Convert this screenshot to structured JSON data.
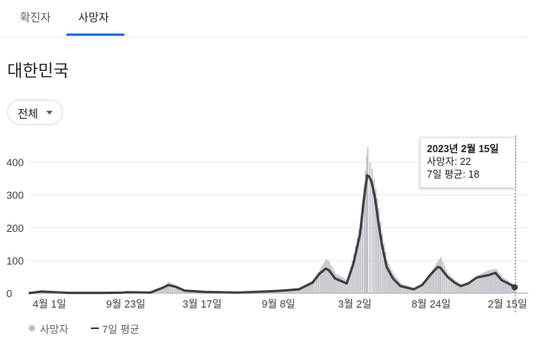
{
  "tabs": [
    {
      "label": "확진자",
      "selected": false
    },
    {
      "label": "사망자",
      "selected": true
    }
  ],
  "region_title": "대한민국",
  "range_dropdown": {
    "selected": "전체",
    "icon": "caret-down-icon"
  },
  "tooltip": {
    "date": "2023년 2월 15일",
    "deaths_label": "사망자: 22",
    "avg_label": "7일 평균: 18"
  },
  "legend": {
    "deaths": "사망자",
    "avg": "7일 평균"
  },
  "colors": {
    "accent": "#1a73e8",
    "bars": "#bdc1c6",
    "avg_line": "#3c4043",
    "grid": "#e8eaed"
  },
  "chart_data": {
    "type": "bar",
    "title": "",
    "xlabel": "",
    "ylabel": "",
    "ylim": [
      0,
      450
    ],
    "yticks": [
      0,
      100,
      200,
      300,
      400
    ],
    "grid": true,
    "legend_position": "bottom-left",
    "x_tick_labels": [
      "4월 1일",
      "9월 23일",
      "3월 17일",
      "9월 8일",
      "3월 2일",
      "8월 24일",
      "2월 15일"
    ],
    "x_range": [
      "2020-02-15",
      "2023-02-15"
    ],
    "series": [
      {
        "name": "사망자",
        "kind": "bars",
        "points": [
          [
            "2020-02-15",
            0
          ],
          [
            "2020-03-15",
            6
          ],
          [
            "2020-04-01",
            5
          ],
          [
            "2020-05-15",
            1
          ],
          [
            "2020-08-01",
            1
          ],
          [
            "2020-09-15",
            3
          ],
          [
            "2020-09-23",
            4
          ],
          [
            "2020-11-15",
            2
          ],
          [
            "2020-12-15",
            20
          ],
          [
            "2020-12-25",
            35
          ],
          [
            "2021-01-10",
            25
          ],
          [
            "2021-01-31",
            10
          ],
          [
            "2021-03-17",
            5
          ],
          [
            "2021-06-01",
            3
          ],
          [
            "2021-08-15",
            8
          ],
          [
            "2021-09-08",
            10
          ],
          [
            "2021-10-15",
            15
          ],
          [
            "2021-11-15",
            40
          ],
          [
            "2021-12-01",
            75
          ],
          [
            "2021-12-15",
            105
          ],
          [
            "2021-12-22",
            95
          ],
          [
            "2022-01-05",
            60
          ],
          [
            "2022-01-31",
            40
          ],
          [
            "2022-02-15",
            120
          ],
          [
            "2022-03-02",
            220
          ],
          [
            "2022-03-10",
            330
          ],
          [
            "2022-03-16",
            420
          ],
          [
            "2022-03-18",
            445
          ],
          [
            "2022-03-23",
            400
          ],
          [
            "2022-03-28",
            380
          ],
          [
            "2022-04-05",
            320
          ],
          [
            "2022-04-12",
            260
          ],
          [
            "2022-04-20",
            180
          ],
          [
            "2022-05-01",
            100
          ],
          [
            "2022-05-15",
            60
          ],
          [
            "2022-06-01",
            30
          ],
          [
            "2022-07-01",
            15
          ],
          [
            "2022-07-20",
            30
          ],
          [
            "2022-08-10",
            70
          ],
          [
            "2022-08-24",
            100
          ],
          [
            "2022-08-30",
            110
          ],
          [
            "2022-09-15",
            60
          ],
          [
            "2022-10-01",
            40
          ],
          [
            "2022-10-15",
            25
          ],
          [
            "2022-11-01",
            35
          ],
          [
            "2022-11-20",
            55
          ],
          [
            "2022-12-15",
            70
          ],
          [
            "2023-01-01",
            75
          ],
          [
            "2023-01-15",
            50
          ],
          [
            "2023-02-01",
            35
          ],
          [
            "2023-02-15",
            22
          ]
        ]
      },
      {
        "name": "7일 평균",
        "kind": "line",
        "points": [
          [
            "2020-02-15",
            0
          ],
          [
            "2020-03-15",
            5
          ],
          [
            "2020-04-01",
            4
          ],
          [
            "2020-05-15",
            1
          ],
          [
            "2020-08-01",
            1
          ],
          [
            "2020-09-15",
            2
          ],
          [
            "2020-09-23",
            3
          ],
          [
            "2020-11-15",
            2
          ],
          [
            "2020-12-15",
            18
          ],
          [
            "2020-12-25",
            25
          ],
          [
            "2021-01-10",
            20
          ],
          [
            "2021-01-31",
            8
          ],
          [
            "2021-03-17",
            4
          ],
          [
            "2021-06-01",
            2
          ],
          [
            "2021-08-15",
            6
          ],
          [
            "2021-09-08",
            8
          ],
          [
            "2021-10-15",
            12
          ],
          [
            "2021-11-15",
            32
          ],
          [
            "2021-12-01",
            60
          ],
          [
            "2021-12-15",
            75
          ],
          [
            "2021-12-22",
            70
          ],
          [
            "2022-01-05",
            45
          ],
          [
            "2022-01-31",
            30
          ],
          [
            "2022-02-15",
            90
          ],
          [
            "2022-03-02",
            180
          ],
          [
            "2022-03-10",
            280
          ],
          [
            "2022-03-16",
            340
          ],
          [
            "2022-03-18",
            360
          ],
          [
            "2022-03-23",
            355
          ],
          [
            "2022-03-28",
            340
          ],
          [
            "2022-04-05",
            290
          ],
          [
            "2022-04-12",
            220
          ],
          [
            "2022-04-20",
            150
          ],
          [
            "2022-05-01",
            80
          ],
          [
            "2022-05-15",
            45
          ],
          [
            "2022-06-01",
            22
          ],
          [
            "2022-07-01",
            12
          ],
          [
            "2022-07-20",
            25
          ],
          [
            "2022-08-10",
            60
          ],
          [
            "2022-08-24",
            80
          ],
          [
            "2022-08-30",
            78
          ],
          [
            "2022-09-15",
            50
          ],
          [
            "2022-10-01",
            32
          ],
          [
            "2022-10-15",
            22
          ],
          [
            "2022-11-01",
            30
          ],
          [
            "2022-11-20",
            48
          ],
          [
            "2022-12-15",
            55
          ],
          [
            "2023-01-01",
            62
          ],
          [
            "2023-01-15",
            40
          ],
          [
            "2023-02-01",
            28
          ],
          [
            "2023-02-15",
            18
          ]
        ]
      }
    ]
  }
}
